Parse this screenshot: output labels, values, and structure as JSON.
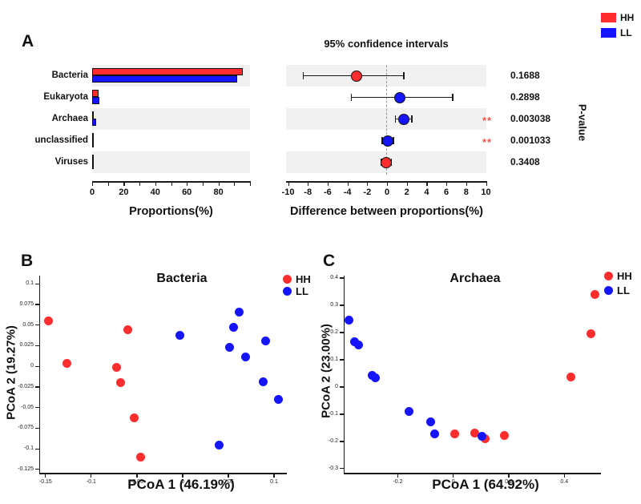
{
  "colors": {
    "hh": "#FF2D2D",
    "ll": "#1414FF",
    "band": "#F1F1F1",
    "significance": "#F05555",
    "axis": "#1A1A1A",
    "dashed_line": "#999999"
  },
  "legend": {
    "items": [
      {
        "label": "HH"
      },
      {
        "label": "LL"
      }
    ]
  },
  "panelA": {
    "letter": "A"
  },
  "panelB": {
    "letter": "B"
  },
  "panelC": {
    "letter": "C"
  },
  "chart_data": [
    {
      "id": "proportions_bar",
      "type": "bar",
      "categories": [
        "Bacteria",
        "Eukaryota",
        "Archaea",
        "unclassified",
        "Viruses"
      ],
      "series": [
        {
          "name": "HH",
          "values": [
            95.5,
            3.9,
            0.8,
            0.25,
            0.2
          ]
        },
        {
          "name": "LL",
          "values": [
            92.0,
            4.7,
            2.4,
            0.3,
            0.2
          ]
        }
      ],
      "xlabel": "Proportions(%)",
      "xlim": [
        0,
        100
      ],
      "xticks": [
        0,
        20,
        40,
        60,
        80
      ],
      "minor_tick_step": 10,
      "banded_rows": [
        0,
        2,
        4
      ]
    },
    {
      "id": "difference_ci",
      "type": "dot-ci",
      "title": "95% confidence intervals",
      "categories": [
        "Bacteria",
        "Eukaryota",
        "Archaea",
        "unclassified",
        "Viruses"
      ],
      "points": [
        {
          "category": "Bacteria",
          "mean": -3.1,
          "ci": [
            -8.45,
            1.7
          ],
          "group": "HH",
          "p_value": "0.1688",
          "significant": false
        },
        {
          "category": "Eukaryota",
          "mean": 1.3,
          "ci": [
            -3.6,
            6.65
          ],
          "group": "LL",
          "p_value": "0.2898",
          "significant": false
        },
        {
          "category": "Archaea",
          "mean": 1.7,
          "ci": [
            0.83,
            2.53
          ],
          "group": "LL",
          "p_value": "0.003038",
          "significant": true
        },
        {
          "category": "unclassified",
          "mean": 0.1,
          "ci": [
            -0.5,
            0.65
          ],
          "group": "LL",
          "p_value": "0.001033",
          "significant": true
        },
        {
          "category": "Viruses",
          "mean": -0.1,
          "ci": [
            -0.55,
            0.45
          ],
          "group": "HH",
          "p_value": "0.3408",
          "significant": false
        }
      ],
      "sig_marker": "**",
      "xlabel": "Difference between proportions(%)",
      "right_axis_label": "P-value",
      "xlim": [
        -10.2,
        10.1
      ],
      "xticks": [
        -10,
        -8,
        -6,
        -4,
        -2,
        0,
        2,
        4,
        6,
        8,
        10
      ],
      "zero_line": "dashed"
    },
    {
      "id": "pcoa_bacteria",
      "type": "scatter",
      "title": "Bacteria",
      "xlabel": "PCoA 1 (46.19%)",
      "ylabel": "PCoA 2 (19.27%)",
      "xlim": [
        -0.156,
        0.114
      ],
      "ylim": [
        -0.129,
        0.109
      ],
      "xticks": [
        -0.15,
        -0.1,
        -0.05,
        0,
        0.05,
        0.1
      ],
      "xtick_labels": [
        "-0.15",
        "-0.1",
        "-0.05",
        "0",
        "0.05",
        "0.1"
      ],
      "yticks": [
        0.1,
        0.075,
        0.05,
        0.025,
        0,
        -0.025,
        -0.05,
        -0.075,
        -0.1,
        -0.125
      ],
      "ytick_labels": [
        "0.1",
        "0.075",
        "0.05",
        "0.025",
        "0",
        "-0.025",
        "-0.05",
        "-0.075",
        "-0.1",
        "-0.125"
      ],
      "series": [
        {
          "name": "HH",
          "points": [
            [
              -0.147,
              0.055
            ],
            [
              -0.127,
              0.004
            ],
            [
              -0.06,
              0.044
            ],
            [
              -0.072,
              -0.001
            ],
            [
              -0.068,
              -0.02
            ],
            [
              -0.053,
              -0.062
            ],
            [
              -0.046,
              -0.11
            ]
          ]
        },
        {
          "name": "LL",
          "points": [
            [
              -0.003,
              0.038
            ],
            [
              0.056,
              0.047
            ],
            [
              0.062,
              0.066
            ],
            [
              0.051,
              0.023
            ],
            [
              0.069,
              0.011
            ],
            [
              0.091,
              0.031
            ],
            [
              0.088,
              -0.019
            ],
            [
              0.105,
              -0.04
            ],
            [
              0.04,
              -0.095
            ]
          ]
        }
      ]
    },
    {
      "id": "pcoa_archaea",
      "type": "scatter",
      "title": "Archaea",
      "xlabel": "PCoA 1 (64.92%)",
      "ylabel": "PCoA 2 (23.00%)",
      "xlim": [
        -0.392,
        0.532
      ],
      "ylim": [
        -0.315,
        0.406
      ],
      "xticks": [
        -0.2,
        0,
        0.2,
        0.4
      ],
      "xtick_labels": [
        "-0.2",
        "0",
        "0.2",
        "0.4"
      ],
      "yticks": [
        0.4,
        0.3,
        0.2,
        0.1,
        0,
        -0.1,
        -0.2,
        -0.3
      ],
      "ytick_labels": [
        "0.4",
        "0.3",
        "0.2",
        "0.1",
        "0",
        "-0.1",
        "-0.2",
        "-0.3"
      ],
      "series": [
        {
          "name": "HH",
          "points": [
            [
              0.006,
              -0.171
            ],
            [
              0.078,
              -0.168
            ],
            [
              0.114,
              -0.191
            ],
            [
              0.184,
              -0.179
            ],
            [
              0.424,
              0.038
            ],
            [
              0.497,
              0.197
            ],
            [
              0.51,
              0.34
            ]
          ]
        },
        {
          "name": "LL",
          "points": [
            [
              -0.375,
              0.245
            ],
            [
              -0.356,
              0.165
            ],
            [
              -0.342,
              0.153
            ],
            [
              -0.293,
              0.043
            ],
            [
              -0.281,
              0.035
            ],
            [
              -0.159,
              -0.091
            ],
            [
              -0.083,
              -0.129
            ],
            [
              -0.068,
              -0.171
            ],
            [
              0.102,
              -0.182
            ]
          ]
        }
      ]
    }
  ]
}
